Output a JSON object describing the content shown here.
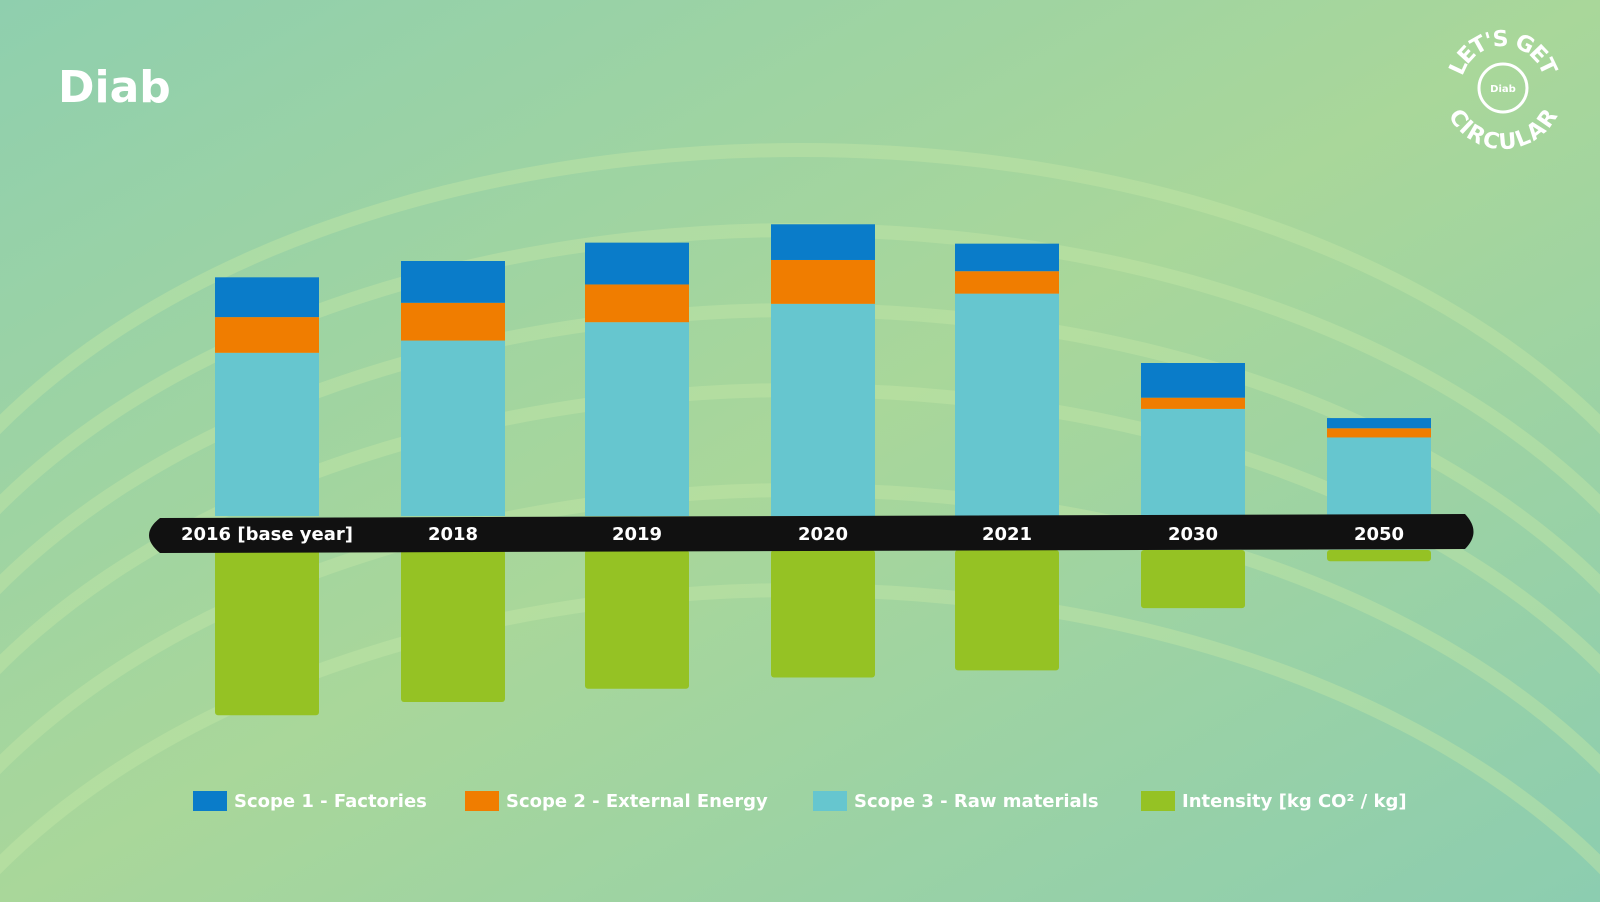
{
  "logo": "Diab",
  "badge": {
    "top": "LET'S GET",
    "bottom": "CIRCULAR",
    "center": "Diab"
  },
  "chart_data": {
    "type": "bar",
    "categories": [
      "2016 [base year]",
      "2018",
      "2019",
      "2020",
      "2021",
      "2030",
      "2050"
    ],
    "series": [
      {
        "name": "Scope 1 - Factories",
        "color": "#0a7cc9",
        "values": [
          39,
          41,
          41,
          35,
          27,
          34,
          10
        ]
      },
      {
        "name": "Scope 2 - External Energy",
        "color": "#f07d00",
        "values": [
          35,
          37,
          37,
          43,
          22,
          11,
          9
        ]
      },
      {
        "name": "Scope 3 - Raw materials",
        "color": "#66c6cf",
        "values": [
          160,
          172,
          190,
          208,
          218,
          105,
          77
        ]
      },
      {
        "name": "Intensity [kg CO² / kg]",
        "color": "#95c224",
        "axis": "y2",
        "values": [
          162,
          149,
          136,
          125,
          118,
          57,
          11
        ]
      }
    ]
  }
}
